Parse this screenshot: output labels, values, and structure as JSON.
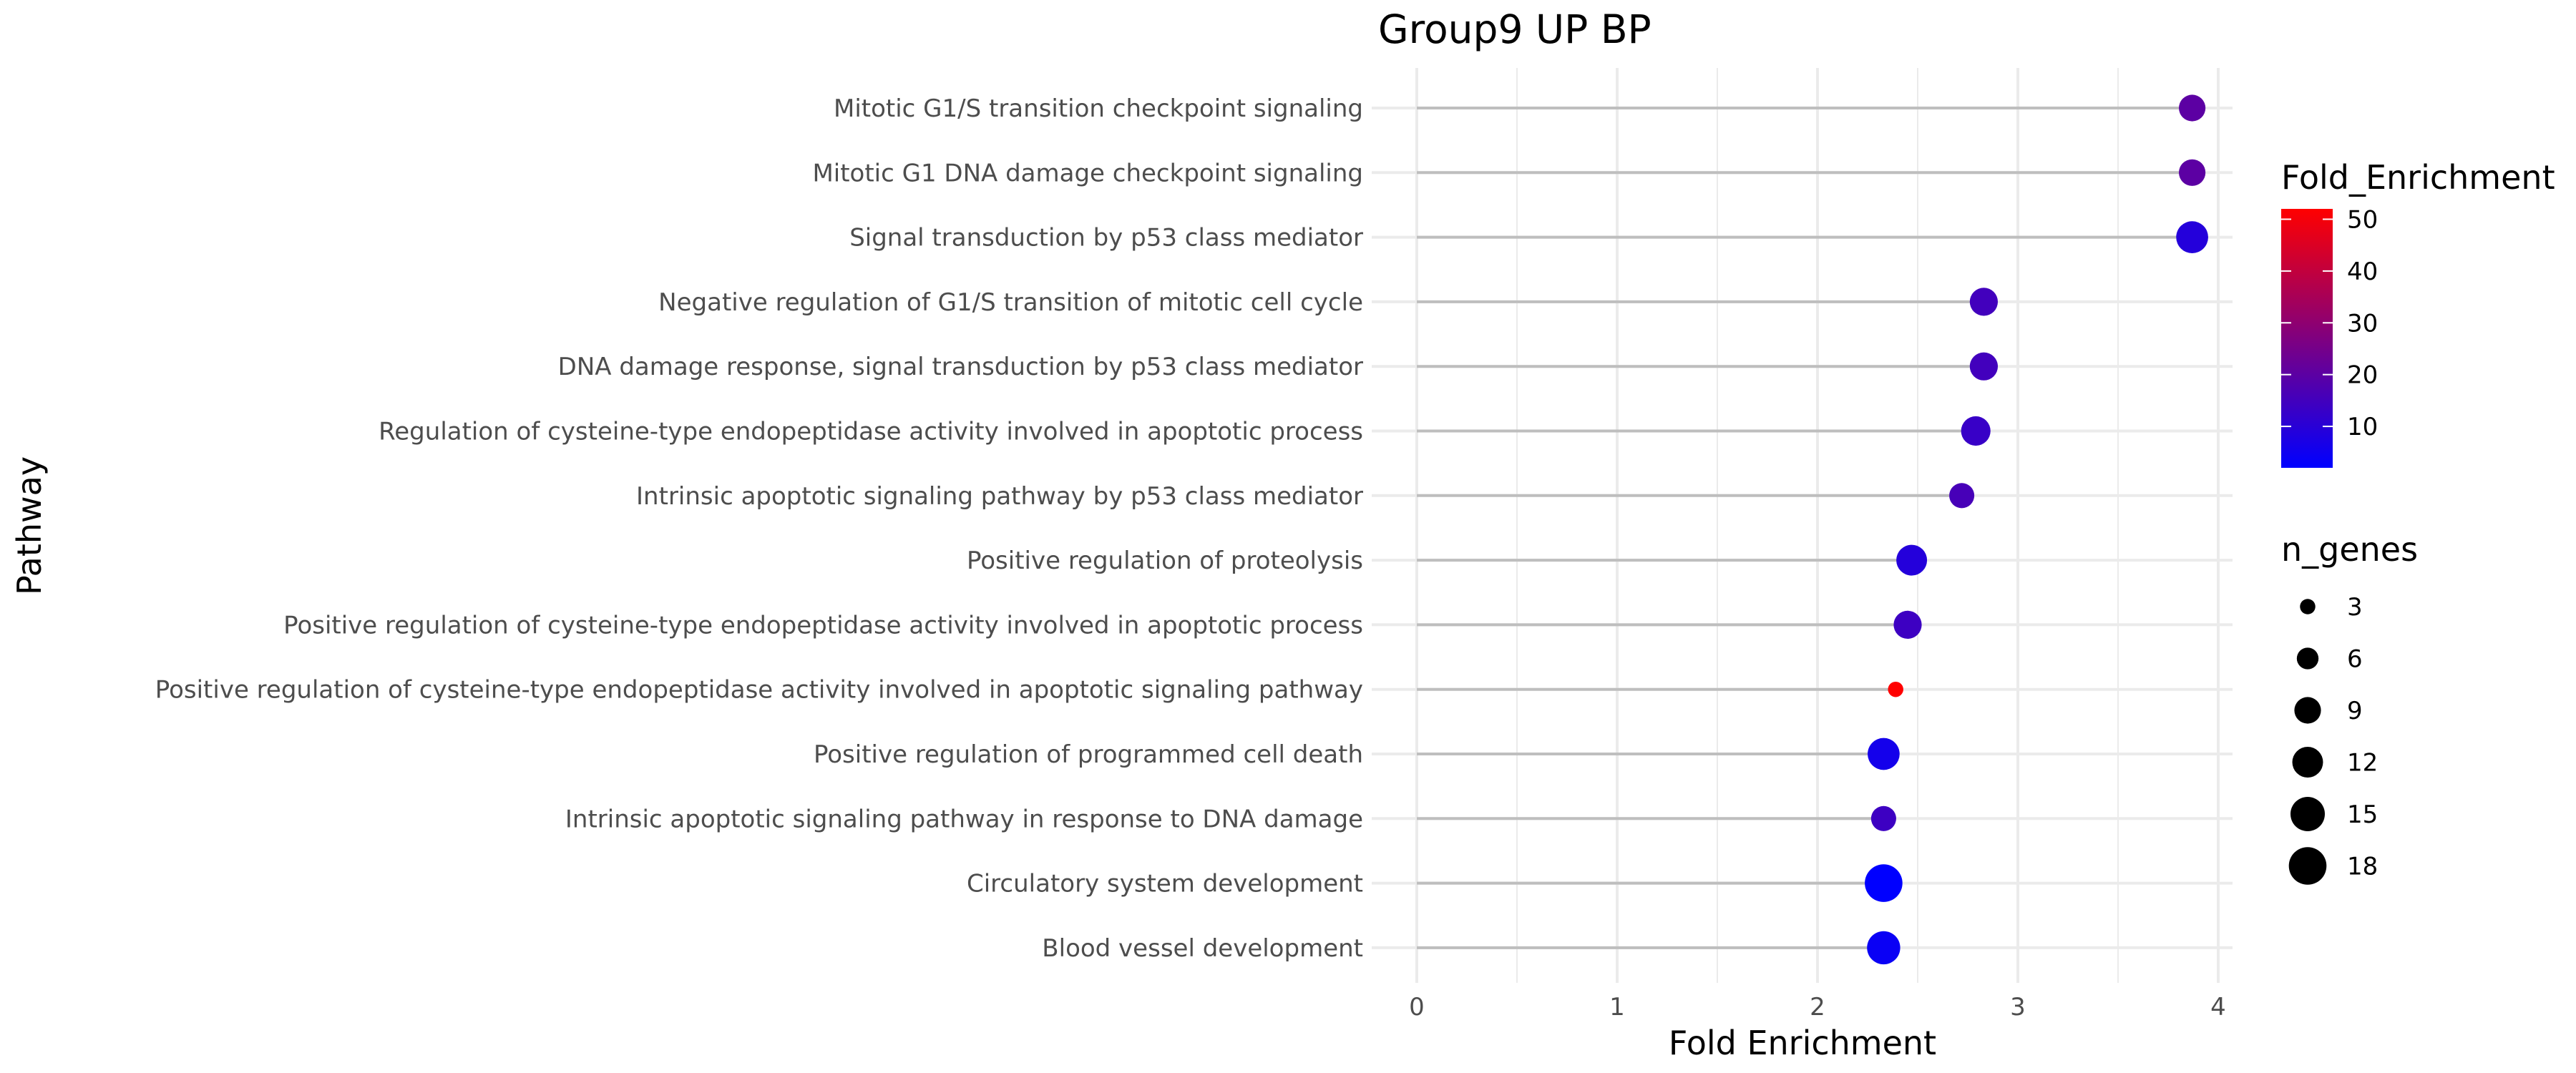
{
  "chart_data": {
    "type": "scatter",
    "style": "lollipop",
    "title": "Group9 UP BP",
    "xlabel": "Fold Enrichment",
    "ylabel": "Pathway",
    "xlim": [
      0,
      4
    ],
    "xticks": [
      0,
      1,
      2,
      3,
      4
    ],
    "grid": true,
    "legend_position": "right",
    "points": [
      {
        "pathway": "Mitotic G1/S transition checkpoint signaling",
        "x": 3.87,
        "fold_enrichment": 20,
        "n_genes": 9
      },
      {
        "pathway": "Mitotic G1 DNA damage checkpoint signaling",
        "x": 3.87,
        "fold_enrichment": 20,
        "n_genes": 9
      },
      {
        "pathway": "Signal transduction by p53 class mediator",
        "x": 3.87,
        "fold_enrichment": 9,
        "n_genes": 13
      },
      {
        "pathway": "Negative regulation of G1/S transition of mitotic cell cycle",
        "x": 2.83,
        "fold_enrichment": 15,
        "n_genes": 10
      },
      {
        "pathway": "DNA damage response, signal transduction by p53 class mediator",
        "x": 2.83,
        "fold_enrichment": 15,
        "n_genes": 10
      },
      {
        "pathway": "Regulation of cysteine-type endopeptidase activity involved in apoptotic process",
        "x": 2.79,
        "fold_enrichment": 13,
        "n_genes": 11
      },
      {
        "pathway": "Intrinsic apoptotic signaling pathway by p53 class mediator",
        "x": 2.72,
        "fold_enrichment": 16,
        "n_genes": 8
      },
      {
        "pathway": "Positive regulation of proteolysis",
        "x": 2.47,
        "fold_enrichment": 9,
        "n_genes": 12
      },
      {
        "pathway": "Positive regulation of cysteine-type endopeptidase activity involved in apoptotic process",
        "x": 2.45,
        "fold_enrichment": 14,
        "n_genes": 10
      },
      {
        "pathway": "Positive regulation of cysteine-type endopeptidase activity involved in apoptotic signaling pathway",
        "x": 2.39,
        "fold_enrichment": 52,
        "n_genes": 3
      },
      {
        "pathway": "Positive regulation of programmed cell death",
        "x": 2.33,
        "fold_enrichment": 6,
        "n_genes": 13
      },
      {
        "pathway": "Intrinsic apoptotic signaling pathway in response to DNA damage",
        "x": 2.33,
        "fold_enrichment": 14,
        "n_genes": 8
      },
      {
        "pathway": "Circulatory system development",
        "x": 2.33,
        "fold_enrichment": 2,
        "n_genes": 18
      },
      {
        "pathway": "Blood vessel development",
        "x": 2.33,
        "fold_enrichment": 4,
        "n_genes": 14
      }
    ],
    "legend_color": {
      "title": "Fold_Enrichment",
      "range": [
        2,
        52
      ],
      "ticks": [
        10,
        20,
        30,
        40,
        50
      ],
      "low_color": "#0000ff",
      "high_color": "#ff0000"
    },
    "legend_size": {
      "title": "n_genes",
      "values": [
        3,
        6,
        9,
        12,
        15,
        18
      ]
    },
    "colors": {
      "segment": "#bebebe",
      "grid": "#ebebeb",
      "size_legend_dot": "#000000"
    }
  }
}
